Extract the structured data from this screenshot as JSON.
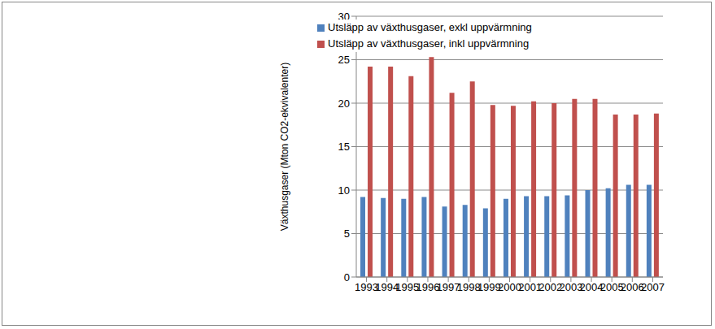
{
  "chart_data": {
    "type": "bar",
    "y_label": "Växthusgaser (Mton CO2-ekvivalenter)",
    "categories": [
      "1993",
      "1994",
      "1995",
      "1996",
      "1997",
      "1998",
      "1999",
      "2000",
      "2001",
      "2002",
      "2003",
      "2004",
      "2005",
      "2006",
      "2007"
    ],
    "series": [
      {
        "name": "Utsläpp av växthusgaser, exkl uppvärmning",
        "color": "#4f81bd",
        "values": [
          9.2,
          9.1,
          9.0,
          9.2,
          8.1,
          8.3,
          7.9,
          9.0,
          9.3,
          9.3,
          9.4,
          10.0,
          10.2,
          10.6,
          10.6
        ]
      },
      {
        "name": "Utsläpp av växthusgaser, inkl uppvärmning",
        "color": "#c0504d",
        "values": [
          24.2,
          24.2,
          23.1,
          25.3,
          21.2,
          22.5,
          19.8,
          19.7,
          20.2,
          20.0,
          20.5,
          20.5,
          18.7,
          18.7,
          18.8
        ]
      }
    ],
    "ylim": [
      0,
      30
    ],
    "yticks": [
      0,
      5,
      10,
      15,
      20,
      25,
      30
    ],
    "grid": true,
    "legend": "top right"
  }
}
